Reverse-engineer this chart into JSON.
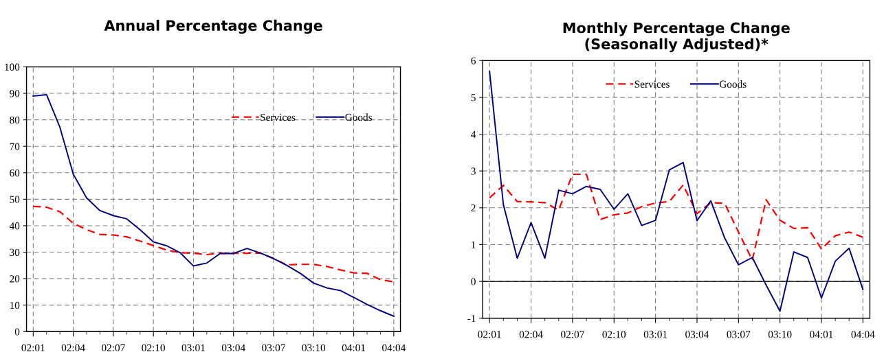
{
  "chart_data": [
    {
      "type": "line",
      "title": "Annual Percentage Change",
      "categories": [
        "02:01",
        null,
        null,
        "02:04",
        null,
        null,
        "02:07",
        null,
        null,
        "02:10",
        null,
        null,
        "03:01",
        null,
        null,
        "03:04",
        null,
        null,
        "03:07",
        null,
        null,
        "03:10",
        null,
        null,
        "04:01",
        null,
        null,
        "04:04"
      ],
      "series": [
        {
          "name": "Services",
          "color": "#ff0000",
          "line_style": "dashed",
          "values": [
            47.3,
            47,
            45.3,
            40.9,
            38.5,
            36.7,
            36.5,
            35.8,
            34.2,
            32.5,
            30.8,
            29.8,
            29.6,
            29.1,
            29.6,
            29.6,
            29.6,
            29.7,
            27.6,
            25.2,
            25.4,
            25.4,
            24.6,
            23.3,
            22.2,
            22,
            19.6,
            18.8
          ]
        },
        {
          "name": "Goods",
          "color": "#000080",
          "line_style": "solid",
          "values": [
            89,
            89.5,
            77.2,
            59.5,
            50.5,
            45.7,
            43.8,
            42.6,
            38.5,
            33.9,
            32.4,
            29.8,
            24.8,
            25.9,
            29.5,
            29.5,
            31.4,
            29.7,
            27.6,
            25,
            22,
            18.3,
            16.5,
            15.5,
            12.9,
            10.3,
            7.9,
            5.8
          ]
        }
      ],
      "ylim": [
        0,
        100
      ],
      "yticks": [
        0,
        10,
        20,
        30,
        40,
        50,
        60,
        70,
        80,
        90,
        100
      ],
      "grid": true,
      "legend": "top right",
      "marker": "none"
    },
    {
      "type": "line",
      "title": "Monthly Percentage Change\n(Seasonally Adjusted)*",
      "categories": [
        "02:01",
        null,
        null,
        "02:04",
        null,
        null,
        "02:07",
        null,
        null,
        "02:10",
        null,
        null,
        "03:01",
        null,
        null,
        "03:04",
        null,
        null,
        "03:07",
        null,
        null,
        "03:10",
        null,
        null,
        "04:01",
        null,
        null,
        "04:04"
      ],
      "series": [
        {
          "name": "Services",
          "color": "#ff0000",
          "line_style": "dashed",
          "values": [
            2.27,
            2.61,
            2.17,
            2.16,
            2.14,
            1.94,
            2.91,
            2.91,
            1.68,
            1.81,
            1.86,
            2.03,
            2.13,
            2.17,
            2.62,
            1.84,
            2.14,
            2.12,
            1.34,
            0.58,
            2.22,
            1.66,
            1.44,
            1.46,
            0.88,
            1.24,
            1.34,
            1.2
          ]
        },
        {
          "name": "Goods",
          "color": "#000080",
          "line_style": "solid",
          "values": [
            5.7,
            2.08,
            0.63,
            1.6,
            0.63,
            2.48,
            2.38,
            2.58,
            2.5,
            1.96,
            2.38,
            1.52,
            1.66,
            3.03,
            3.23,
            1.65,
            2.19,
            1.18,
            0.45,
            0.65,
            -0.1,
            -0.81,
            0.8,
            0.65,
            -0.45,
            0.55,
            0.9,
            -0.22
          ]
        }
      ],
      "ylim": [
        -1,
        6
      ],
      "yticks": [
        -1,
        0,
        1,
        2,
        3,
        4,
        5,
        6
      ],
      "grid": true,
      "legend": "top",
      "marker": "none",
      "ref_lines": [
        {
          "axis": "y",
          "value": 0,
          "color": "#000000",
          "line_style": "solid"
        }
      ]
    }
  ]
}
